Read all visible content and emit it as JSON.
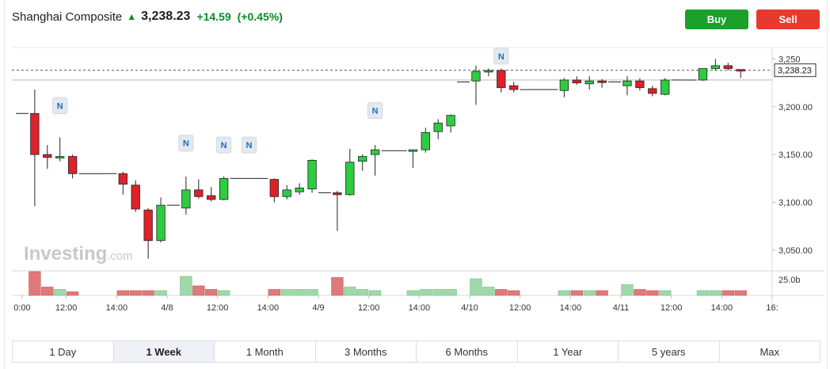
{
  "header": {
    "name": "Shanghai Composite",
    "price": "3,238.23",
    "change": "+14.59",
    "change_pct": "(+0.45%)"
  },
  "actions": {
    "buy_label": "Buy",
    "sell_label": "Sell"
  },
  "watermark": {
    "brand": "Investing",
    "suffix": ".com"
  },
  "price_axis": {
    "ticks": [
      {
        "value": 3250,
        "label": "3,250"
      },
      {
        "value": 3200,
        "label": "3,200.00"
      },
      {
        "value": 3150,
        "label": "3,150.00"
      },
      {
        "value": 3100,
        "label": "3,100.00"
      },
      {
        "value": 3050,
        "label": "3,050.00"
      }
    ],
    "current_value": 3238.23,
    "current_label": "3,238.23"
  },
  "volume_axis": {
    "label": "25.0b"
  },
  "time_axis": {
    "labels": [
      "0:00",
      "12:00",
      "14:00",
      "4/8",
      "12:00",
      "14:00",
      "4/9",
      "12:00",
      "14:00",
      "4/10",
      "12:00",
      "14:00",
      "4/11",
      "12:00",
      "14:00",
      "16:"
    ],
    "label_slots": [
      0,
      4,
      8,
      12,
      16,
      20,
      24,
      28,
      32,
      36,
      40,
      44,
      48,
      52,
      56,
      60
    ]
  },
  "colors": {
    "up": "#2ecc40",
    "down": "#e0202a",
    "vol_up": "#9fd9ab",
    "vol_down": "#e07a7a",
    "news": "#1a6fc4"
  },
  "chart_data": {
    "type": "candlestick",
    "ylim": [
      3030,
      3262
    ],
    "candles": [
      {
        "o": 3193,
        "h": 3193,
        "l": 3193,
        "c": 3193,
        "v": 0,
        "flat": true
      },
      {
        "o": 3193,
        "h": 3218,
        "l": 3096,
        "c": 3150,
        "v": 20
      },
      {
        "o": 3150,
        "h": 3160,
        "l": 3135,
        "c": 3147,
        "v": 7
      },
      {
        "o": 3148,
        "h": 3168,
        "l": 3143,
        "c": 3148,
        "v": 5
      },
      {
        "o": 3148,
        "h": 3150,
        "l": 3125,
        "c": 3130,
        "v": 3
      },
      {
        "o": 3130,
        "h": 3130,
        "l": 3130,
        "c": 3130,
        "v": 0,
        "flat": true
      },
      {
        "o": 3130,
        "h": 3130,
        "l": 3130,
        "c": 3130,
        "v": 0,
        "flat": true
      },
      {
        "o": 3130,
        "h": 3130,
        "l": 3130,
        "c": 3130,
        "v": 0,
        "flat": true
      },
      {
        "o": 3130,
        "h": 3132,
        "l": 3108,
        "c": 3119,
        "v": 4
      },
      {
        "o": 3118,
        "h": 3123,
        "l": 3090,
        "c": 3093,
        "v": 4
      },
      {
        "o": 3092,
        "h": 3094,
        "l": 3041,
        "c": 3060,
        "v": 4
      },
      {
        "o": 3060,
        "h": 3105,
        "l": 3058,
        "c": 3097,
        "v": 4
      },
      {
        "o": 3097,
        "h": 3097,
        "l": 3097,
        "c": 3097,
        "v": 0,
        "flat": true
      },
      {
        "o": 3094,
        "h": 3127,
        "l": 3087,
        "c": 3113,
        "v": 16
      },
      {
        "o": 3113,
        "h": 3124,
        "l": 3104,
        "c": 3106,
        "v": 8
      },
      {
        "o": 3107,
        "h": 3116,
        "l": 3101,
        "c": 3103,
        "v": 5
      },
      {
        "o": 3103,
        "h": 3127,
        "l": 3102,
        "c": 3125,
        "v": 4
      },
      {
        "o": 3125,
        "h": 3125,
        "l": 3125,
        "c": 3125,
        "v": 0,
        "flat": true
      },
      {
        "o": 3125,
        "h": 3125,
        "l": 3125,
        "c": 3125,
        "v": 0,
        "flat": true
      },
      {
        "o": 3125,
        "h": 3125,
        "l": 3125,
        "c": 3125,
        "v": 0,
        "flat": true
      },
      {
        "o": 3124,
        "h": 3125,
        "l": 3100,
        "c": 3106,
        "v": 5
      },
      {
        "o": 3106,
        "h": 3118,
        "l": 3103,
        "c": 3113,
        "v": 5
      },
      {
        "o": 3111,
        "h": 3120,
        "l": 3108,
        "c": 3115,
        "v": 5
      },
      {
        "o": 3114,
        "h": 3145,
        "l": 3110,
        "c": 3144,
        "v": 5
      },
      {
        "o": 3110,
        "h": 3110,
        "l": 3110,
        "c": 3110,
        "v": 0,
        "flat": true
      },
      {
        "o": 3110,
        "h": 3112,
        "l": 3070,
        "c": 3108,
        "v": 15
      },
      {
        "o": 3108,
        "h": 3156,
        "l": 3107,
        "c": 3142,
        "v": 7
      },
      {
        "o": 3143,
        "h": 3150,
        "l": 3133,
        "c": 3148,
        "v": 5
      },
      {
        "o": 3150,
        "h": 3160,
        "l": 3128,
        "c": 3155,
        "v": 4
      },
      {
        "o": 3154,
        "h": 3154,
        "l": 3154,
        "c": 3154,
        "v": 0,
        "flat": true
      },
      {
        "o": 3154,
        "h": 3154,
        "l": 3154,
        "c": 3154,
        "v": 0,
        "flat": true
      },
      {
        "o": 3154,
        "h": 3155,
        "l": 3136,
        "c": 3155,
        "v": 4
      },
      {
        "o": 3155,
        "h": 3178,
        "l": 3152,
        "c": 3173,
        "v": 5
      },
      {
        "o": 3174,
        "h": 3187,
        "l": 3166,
        "c": 3183,
        "v": 5
      },
      {
        "o": 3180,
        "h": 3192,
        "l": 3173,
        "c": 3191,
        "v": 5
      },
      {
        "o": 3226,
        "h": 3226,
        "l": 3226,
        "c": 3226,
        "v": 0,
        "flat": true
      },
      {
        "o": 3227,
        "h": 3243,
        "l": 3202,
        "c": 3237,
        "v": 14
      },
      {
        "o": 3238,
        "h": 3240,
        "l": 3232,
        "c": 3238,
        "v": 7
      },
      {
        "o": 3238,
        "h": 3240,
        "l": 3215,
        "c": 3220,
        "v": 5
      },
      {
        "o": 3222,
        "h": 3226,
        "l": 3215,
        "c": 3218,
        "v": 4
      },
      {
        "o": 3218,
        "h": 3218,
        "l": 3218,
        "c": 3218,
        "v": 0,
        "flat": true
      },
      {
        "o": 3218,
        "h": 3218,
        "l": 3218,
        "c": 3218,
        "v": 0,
        "flat": true
      },
      {
        "o": 3218,
        "h": 3218,
        "l": 3218,
        "c": 3218,
        "v": 0,
        "flat": true
      },
      {
        "o": 3217,
        "h": 3230,
        "l": 3210,
        "c": 3228,
        "v": 4
      },
      {
        "o": 3228,
        "h": 3232,
        "l": 3223,
        "c": 3225,
        "v": 4
      },
      {
        "o": 3224,
        "h": 3232,
        "l": 3218,
        "c": 3227,
        "v": 4
      },
      {
        "o": 3227,
        "h": 3229,
        "l": 3220,
        "c": 3226,
        "v": 4
      },
      {
        "o": 3226,
        "h": 3226,
        "l": 3226,
        "c": 3226,
        "v": 0,
        "flat": true
      },
      {
        "o": 3222,
        "h": 3232,
        "l": 3212,
        "c": 3227,
        "v": 9
      },
      {
        "o": 3227,
        "h": 3230,
        "l": 3217,
        "c": 3220,
        "v": 5
      },
      {
        "o": 3219,
        "h": 3222,
        "l": 3211,
        "c": 3214,
        "v": 4
      },
      {
        "o": 3213,
        "h": 3230,
        "l": 3212,
        "c": 3228,
        "v": 4
      },
      {
        "o": 3228,
        "h": 3228,
        "l": 3228,
        "c": 3228,
        "v": 0,
        "flat": true
      },
      {
        "o": 3228,
        "h": 3228,
        "l": 3228,
        "c": 3228,
        "v": 0,
        "flat": true
      },
      {
        "o": 3228,
        "h": 3240,
        "l": 3227,
        "c": 3240,
        "v": 4
      },
      {
        "o": 3240,
        "h": 3250,
        "l": 3238,
        "c": 3243,
        "v": 4
      },
      {
        "o": 3243,
        "h": 3246,
        "l": 3238,
        "c": 3240,
        "v": 4
      },
      {
        "o": 3239,
        "h": 3239,
        "l": 3230,
        "c": 3238,
        "v": 4
      }
    ],
    "news_markers": [
      {
        "index": 3,
        "label": "N",
        "price": 3201
      },
      {
        "index": 13,
        "label": "N",
        "price": 3162
      },
      {
        "index": 16,
        "label": "N",
        "price": 3160
      },
      {
        "index": 18,
        "label": "N",
        "price": 3160
      },
      {
        "index": 28,
        "label": "N",
        "price": 3196
      },
      {
        "index": 38,
        "label": "N",
        "price": 3253
      }
    ]
  },
  "tabs": [
    {
      "label": "1 Day",
      "active": false
    },
    {
      "label": "1 Week",
      "active": true
    },
    {
      "label": "1 Month",
      "active": false
    },
    {
      "label": "3 Months",
      "active": false
    },
    {
      "label": "6 Months",
      "active": false
    },
    {
      "label": "1 Year",
      "active": false
    },
    {
      "label": "5 years",
      "active": false
    },
    {
      "label": "Max",
      "active": false
    }
  ]
}
